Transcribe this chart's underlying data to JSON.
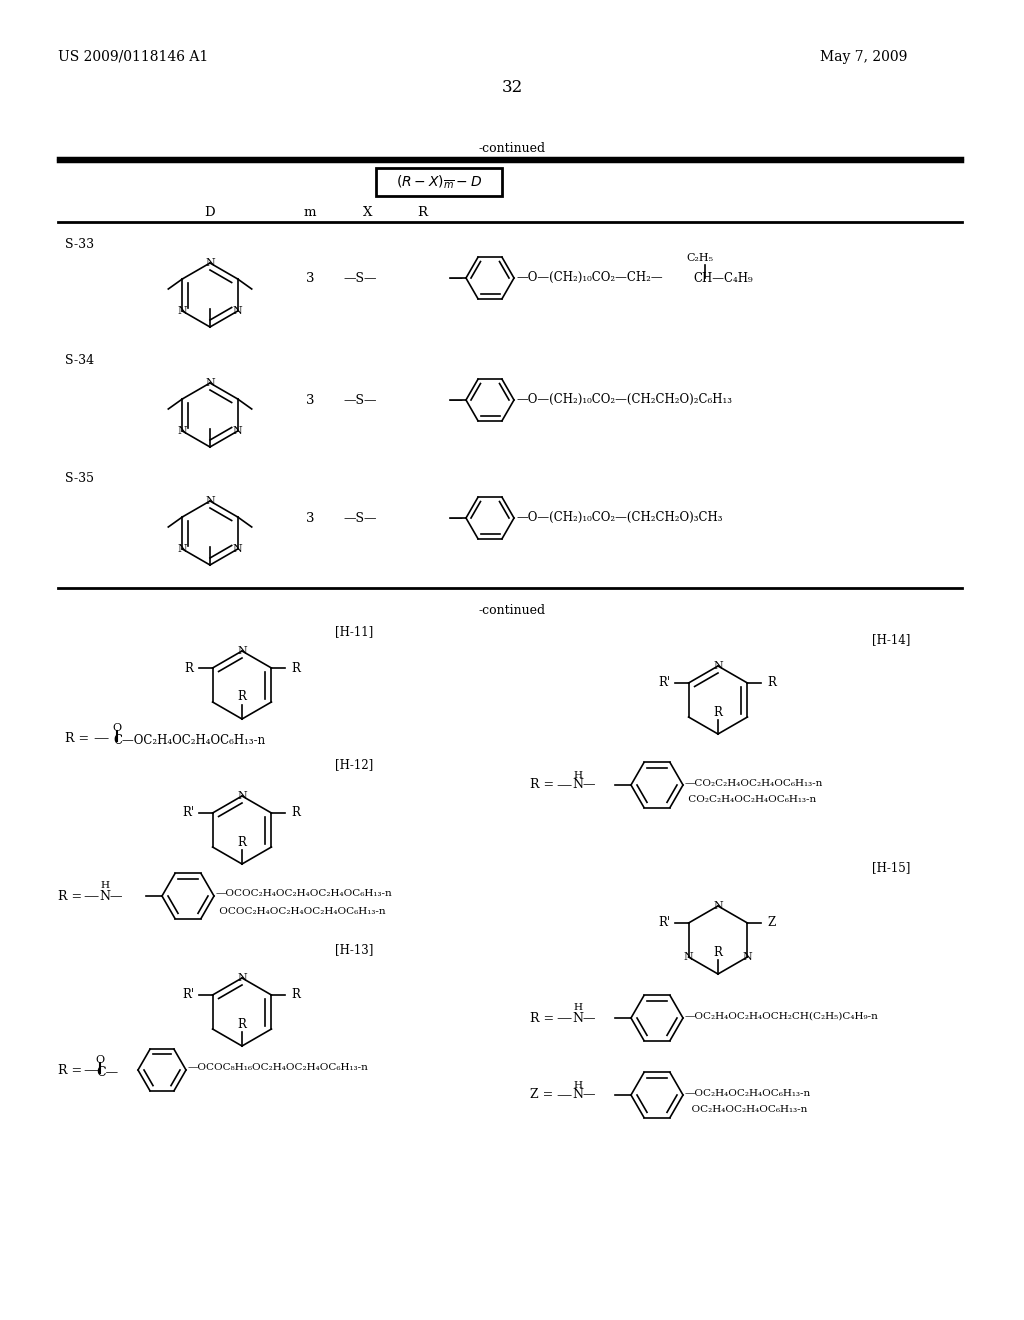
{
  "page_number": "32",
  "patent_number": "US 2009/0118146 A1",
  "patent_date": "May 7, 2009",
  "bg_color": "#ffffff",
  "text_color": "#000000"
}
